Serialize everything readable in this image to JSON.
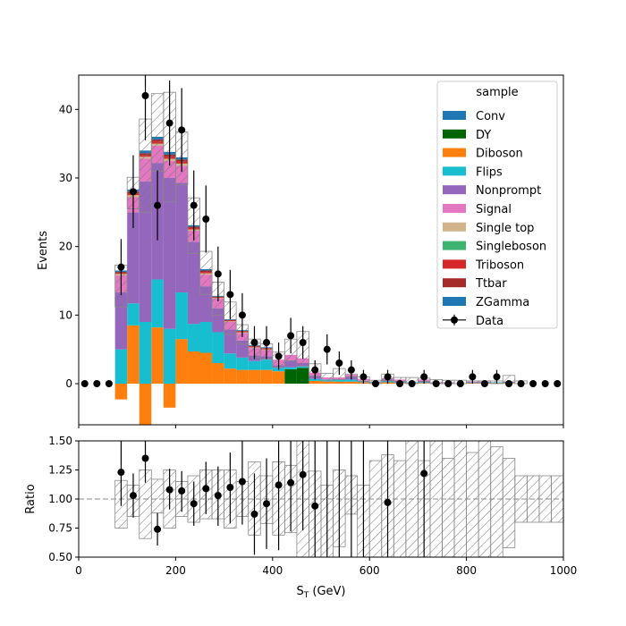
{
  "chart_data": [
    {
      "type": "bar",
      "stacked": true,
      "ylabel": "Events",
      "ylim": [
        -6,
        45
      ],
      "xlim": [
        0,
        1000
      ],
      "yticks": [
        0,
        10,
        20,
        30,
        40
      ],
      "legend": {
        "title": "sample",
        "placement": "top-right",
        "entries": [
          {
            "name": "Conv",
            "color": "#1f77b4"
          },
          {
            "name": "DY",
            "color": "#006400"
          },
          {
            "name": "Diboson",
            "color": "#ff7f0e"
          },
          {
            "name": "Flips",
            "color": "#17becf"
          },
          {
            "name": "Nonprompt",
            "color": "#9467bd"
          },
          {
            "name": "Signal",
            "color": "#e377c2"
          },
          {
            "name": "Single top",
            "color": "#d2b48c"
          },
          {
            "name": "Singleboson",
            "color": "#3cb371"
          },
          {
            "name": "Triboson",
            "color": "#d62728"
          },
          {
            "name": "Ttbar",
            "color": "#a52a2a"
          },
          {
            "name": "ZGamma",
            "color": "#1f77b4"
          },
          {
            "name": "Data",
            "color": "#000000"
          }
        ]
      },
      "bin_edges": [
        0,
        25,
        50,
        75,
        100,
        125,
        150,
        175,
        200,
        225,
        250,
        275,
        300,
        325,
        350,
        375,
        400,
        425,
        450,
        475,
        500,
        525,
        550,
        575,
        600,
        625,
        650,
        675,
        700,
        725,
        750,
        775,
        800,
        825,
        850,
        875,
        900,
        925,
        950,
        975,
        1000
      ],
      "stack": [
        {
          "name": "Diboson",
          "color": "#ff7f0e",
          "values": [
            0,
            0,
            0,
            -2.3,
            8.5,
            -6.5,
            8.2,
            -3.5,
            6.5,
            4.7,
            4.5,
            3.0,
            2.2,
            2.0,
            2.0,
            2.0,
            1.8,
            0,
            0,
            0.4,
            0.3,
            0.3,
            0.3,
            0.2,
            0.1,
            0.2,
            0.1,
            0.1,
            0.1,
            0,
            0,
            0,
            0.1,
            0.1,
            0.1,
            0.1,
            0,
            0,
            0,
            0
          ]
        },
        {
          "name": "DY",
          "color": "#006400",
          "values": [
            0,
            0,
            0,
            0,
            0,
            0,
            0,
            0,
            0,
            0,
            0,
            0,
            0,
            0,
            0,
            0,
            0,
            2.1,
            2.3,
            0,
            0,
            0,
            0,
            0,
            0,
            0,
            0,
            0,
            0,
            0,
            0,
            0,
            0,
            0,
            0,
            0,
            0,
            0,
            0,
            0
          ]
        },
        {
          "name": "Flips",
          "color": "#17becf",
          "values": [
            0,
            0,
            0,
            5.0,
            3.2,
            9.0,
            7.0,
            8.0,
            6.8,
            4.0,
            4.5,
            4.5,
            2.2,
            1.8,
            1.3,
            1.5,
            0.5,
            0.3,
            0.2,
            0.3,
            0.3,
            0.3,
            0.3,
            0.2,
            0.1,
            0.2,
            0.1,
            0.1,
            0.1,
            0,
            0,
            0,
            0.1,
            0.1,
            0.1,
            0.1,
            0,
            0,
            0,
            0
          ]
        },
        {
          "name": "Nonprompt",
          "color": "#9467bd",
          "values": [
            0,
            0,
            0,
            8.3,
            13.3,
            20.5,
            17.0,
            22.0,
            16.0,
            12.0,
            5.2,
            3.5,
            3.5,
            2.5,
            0.8,
            0.5,
            0.4,
            1.0,
            0.5,
            0.4,
            0,
            0,
            0.4,
            0,
            0,
            0.2,
            0.2,
            0,
            0.2,
            0.1,
            0.1,
            0,
            0,
            0,
            0,
            0,
            0,
            0,
            0,
            0
          ]
        },
        {
          "name": "Signal",
          "color": "#e377c2",
          "values": [
            0,
            0,
            0,
            2.5,
            2.2,
            3.3,
            2.5,
            2.5,
            2.5,
            1.6,
            1.7,
            1.4,
            1.1,
            1.1,
            1.1,
            0.9,
            0.8,
            0.8,
            0.7,
            0.5,
            0.3,
            0.3,
            0.3,
            0.3,
            0.1,
            0.2,
            0.2,
            0,
            0.2,
            0.1,
            0.1,
            0,
            0.1,
            0.1,
            0,
            0.1,
            0,
            0,
            0,
            0
          ]
        },
        {
          "name": "Single top",
          "color": "#d2b48c",
          "values": [
            0,
            0,
            0,
            0.2,
            0.3,
            0.3,
            0.3,
            0.3,
            0.3,
            0.2,
            0.2,
            0.1,
            0.1,
            0.1,
            0.1,
            0.1,
            0,
            0,
            0,
            0,
            0,
            0,
            0,
            0,
            0,
            0,
            0,
            0,
            0,
            0,
            0,
            0,
            0,
            0,
            0,
            0,
            0,
            0,
            0,
            0
          ]
        },
        {
          "name": "Singleboson",
          "color": "#3cb371",
          "values": [
            0,
            0,
            0,
            0,
            0,
            0,
            0,
            0,
            0,
            0,
            0,
            0,
            0,
            0,
            0,
            0,
            0,
            0,
            0,
            0,
            0,
            0,
            0,
            0,
            0,
            0,
            0,
            0,
            0,
            0,
            0,
            0,
            0,
            0,
            0,
            0,
            0,
            0,
            0,
            0
          ]
        },
        {
          "name": "Triboson",
          "color": "#d62728",
          "values": [
            0,
            0,
            0,
            0.1,
            0.2,
            0.2,
            0.3,
            0.3,
            0.3,
            0.2,
            0.2,
            0.1,
            0.1,
            0.1,
            0.1,
            0.1,
            0,
            0,
            0,
            0,
            0,
            0,
            0,
            0,
            0,
            0,
            0,
            0,
            0,
            0,
            0,
            0,
            0,
            0,
            0,
            0,
            0,
            0,
            0,
            0
          ]
        },
        {
          "name": "Ttbar",
          "color": "#a52a2a",
          "values": [
            0,
            0,
            0,
            0.2,
            0.3,
            0.3,
            0.3,
            0.3,
            0.3,
            0.2,
            0.2,
            0.1,
            0.1,
            0.1,
            0.1,
            0.1,
            0,
            0,
            0,
            0,
            0,
            0,
            0,
            0,
            0,
            0,
            0,
            0,
            0,
            0,
            0,
            0,
            0,
            0,
            0,
            0,
            0,
            0,
            0,
            0
          ]
        },
        {
          "name": "ZGamma",
          "color": "#1f77b4",
          "values": [
            0,
            0,
            0,
            0.2,
            0.3,
            0.4,
            0.4,
            0.4,
            0.3,
            0.2,
            0.2,
            0.1,
            0.1,
            0.1,
            0.1,
            0.1,
            0,
            0,
            0,
            0,
            0,
            0,
            0,
            0,
            0,
            0,
            0,
            0,
            0,
            0,
            0,
            0,
            0,
            0,
            0,
            0,
            0,
            0,
            0,
            0
          ]
        },
        {
          "name": "Conv",
          "color": "#1f77b4",
          "values": [
            0,
            0,
            0,
            0,
            0,
            0,
            0,
            0,
            0,
            0,
            0,
            0,
            0,
            0,
            0,
            0,
            0,
            0,
            0,
            0,
            0,
            0,
            0,
            0,
            0,
            0,
            0,
            0,
            0,
            0,
            0,
            0,
            0,
            0,
            0,
            0,
            0,
            0,
            0,
            0
          ]
        }
      ],
      "uncertainty_band": {
        "low": [
          0,
          0,
          0,
          11.2,
          25.5,
          25.0,
          31.0,
          26.5,
          29.0,
          19.0,
          13.0,
          10.0,
          7.2,
          5.8,
          3.8,
          3.6,
          2.4,
          3.3,
          2.6,
          1.1,
          0.4,
          0.6,
          1.0,
          0.3,
          0,
          0.4,
          0.3,
          0,
          0.3,
          0,
          0,
          0,
          0.1,
          0.1,
          0,
          0.2,
          0,
          0,
          0,
          0
        ],
        "high": [
          0,
          0,
          0,
          17.3,
          30.1,
          38.6,
          42.3,
          42.5,
          36.7,
          27.1,
          19.3,
          14.8,
          11.9,
          8.6,
          6.5,
          5.8,
          4.6,
          6.5,
          7.6,
          2.9,
          1.5,
          2.2,
          1.4,
          1.0,
          0.5,
          1.4,
          0.9,
          0.9,
          0.8,
          0.6,
          0.5,
          0.5,
          0.4,
          0.4,
          0.4,
          1.2,
          0.4,
          0,
          0,
          0
        ]
      },
      "data_points": [
        {
          "x": 12.5,
          "y": 0,
          "err": 0
        },
        {
          "x": 37.5,
          "y": 0,
          "err": 0
        },
        {
          "x": 62.5,
          "y": 0,
          "err": 0
        },
        {
          "x": 87.5,
          "y": 17,
          "err": 4.1
        },
        {
          "x": 112.5,
          "y": 28,
          "err": 5.3
        },
        {
          "x": 137.5,
          "y": 42,
          "err": 6.5
        },
        {
          "x": 162.5,
          "y": 26,
          "err": 5.1
        },
        {
          "x": 187.5,
          "y": 38,
          "err": 6.2
        },
        {
          "x": 212.5,
          "y": 37,
          "err": 6.1
        },
        {
          "x": 237.5,
          "y": 26,
          "err": 5.1
        },
        {
          "x": 262.5,
          "y": 24,
          "err": 4.9
        },
        {
          "x": 287.5,
          "y": 16,
          "err": 4.0
        },
        {
          "x": 312.5,
          "y": 13,
          "err": 3.6
        },
        {
          "x": 337.5,
          "y": 10,
          "err": 3.2
        },
        {
          "x": 362.5,
          "y": 6,
          "err": 2.4
        },
        {
          "x": 387.5,
          "y": 6,
          "err": 2.4
        },
        {
          "x": 412.5,
          "y": 4,
          "err": 2.0
        },
        {
          "x": 437.5,
          "y": 7,
          "err": 2.6
        },
        {
          "x": 462.5,
          "y": 6,
          "err": 2.4
        },
        {
          "x": 487.5,
          "y": 2,
          "err": 1.4
        },
        {
          "x": 512.5,
          "y": 5,
          "err": 2.2
        },
        {
          "x": 537.5,
          "y": 3,
          "err": 1.7
        },
        {
          "x": 562.5,
          "y": 2,
          "err": 1.4
        },
        {
          "x": 587.5,
          "y": 1,
          "err": 1.0
        },
        {
          "x": 612.5,
          "y": 0,
          "err": 0
        },
        {
          "x": 637.5,
          "y": 1,
          "err": 1.0
        },
        {
          "x": 662.5,
          "y": 0,
          "err": 0
        },
        {
          "x": 687.5,
          "y": 0,
          "err": 0
        },
        {
          "x": 712.5,
          "y": 1,
          "err": 1.0
        },
        {
          "x": 737.5,
          "y": 0,
          "err": 0
        },
        {
          "x": 762.5,
          "y": 0,
          "err": 0
        },
        {
          "x": 787.5,
          "y": 0,
          "err": 0
        },
        {
          "x": 812.5,
          "y": 1,
          "err": 1.0
        },
        {
          "x": 837.5,
          "y": 0,
          "err": 0
        },
        {
          "x": 862.5,
          "y": 1,
          "err": 1.0
        },
        {
          "x": 887.5,
          "y": 0,
          "err": 0
        },
        {
          "x": 912.5,
          "y": 0,
          "err": 0
        },
        {
          "x": 937.5,
          "y": 0,
          "err": 0
        },
        {
          "x": 962.5,
          "y": 0,
          "err": 0
        },
        {
          "x": 987.5,
          "y": 0,
          "err": 0
        }
      ]
    },
    {
      "type": "scatter",
      "xlabel": "S",
      "xlabel_sub": "T",
      "xlabel_unit": " (GeV)",
      "ylabel": "Ratio",
      "xlim": [
        0,
        1000
      ],
      "ylim": [
        0.5,
        1.5
      ],
      "xticks": [
        0,
        200,
        400,
        600,
        800,
        1000
      ],
      "yticks": [
        "0.50",
        "0.75",
        "1.00",
        "1.25",
        "1.50"
      ],
      "reference_line": 1.0,
      "ratio_band": {
        "low": [
          1,
          1,
          1,
          0.75,
          0.85,
          0.66,
          0.88,
          0.75,
          0.85,
          0.8,
          0.83,
          0.83,
          0.75,
          0.85,
          0.69,
          0.79,
          0.69,
          0.71,
          0.35,
          0.44,
          0.35,
          0.59,
          0.87,
          0.5,
          0.5,
          0.46,
          0.5,
          0.3,
          0.5,
          0.35,
          0.3,
          0.3,
          0.35,
          0.3,
          0.3,
          0.58,
          0.8,
          0.8,
          0.8,
          0.8
        ],
        "high": [
          1,
          1,
          1,
          1.16,
          1.12,
          1.25,
          1.17,
          1.25,
          1.15,
          1.2,
          1.25,
          1.25,
          1.25,
          1.15,
          1.32,
          1.2,
          1.32,
          1.29,
          1.65,
          1.24,
          1.12,
          1.25,
          1.2,
          1.12,
          1.33,
          1.38,
          1.33,
          1.5,
          1.33,
          1.5,
          1.35,
          1.5,
          1.4,
          1.5,
          1.45,
          1.35,
          1.2,
          1.2,
          1.2,
          1.2
        ]
      },
      "points": [
        {
          "x": 87.5,
          "y": 1.23,
          "lo": 0.94,
          "hi": 1.5
        },
        {
          "x": 112.5,
          "y": 1.03,
          "lo": 0.84,
          "hi": 1.22
        },
        {
          "x": 137.5,
          "y": 1.35,
          "lo": 1.14,
          "hi": 1.5
        },
        {
          "x": 162.5,
          "y": 0.74,
          "lo": 0.6,
          "hi": 0.88
        },
        {
          "x": 187.5,
          "y": 1.08,
          "lo": 0.91,
          "hi": 1.26
        },
        {
          "x": 212.5,
          "y": 1.07,
          "lo": 0.89,
          "hi": 1.24
        },
        {
          "x": 237.5,
          "y": 0.96,
          "lo": 0.77,
          "hi": 1.15
        },
        {
          "x": 262.5,
          "y": 1.09,
          "lo": 0.87,
          "hi": 1.32
        },
        {
          "x": 287.5,
          "y": 1.03,
          "lo": 0.77,
          "hi": 1.28
        },
        {
          "x": 312.5,
          "y": 1.1,
          "lo": 0.79,
          "hi": 1.4
        },
        {
          "x": 337.5,
          "y": 1.15,
          "lo": 0.78,
          "hi": 1.5
        },
        {
          "x": 362.5,
          "y": 0.87,
          "lo": 0.52,
          "hi": 1.22
        },
        {
          "x": 387.5,
          "y": 0.96,
          "lo": 0.57,
          "hi": 1.35
        },
        {
          "x": 412.5,
          "y": 1.12,
          "lo": 0.56,
          "hi": 1.5
        },
        {
          "x": 437.5,
          "y": 1.14,
          "lo": 0.72,
          "hi": 1.5
        },
        {
          "x": 462.5,
          "y": 1.21,
          "lo": 0.73,
          "hi": 1.5
        },
        {
          "x": 487.5,
          "y": 0.94,
          "lo": 0.5,
          "hi": 1.5
        },
        {
          "x": 637.5,
          "y": 0.97,
          "lo": 0.5,
          "hi": 1.5
        },
        {
          "x": 712.5,
          "y": 1.22,
          "lo": 0.5,
          "hi": 1.5
        }
      ],
      "error_only_x": [
        512.5,
        537.5,
        562.5,
        587.5
      ]
    }
  ]
}
